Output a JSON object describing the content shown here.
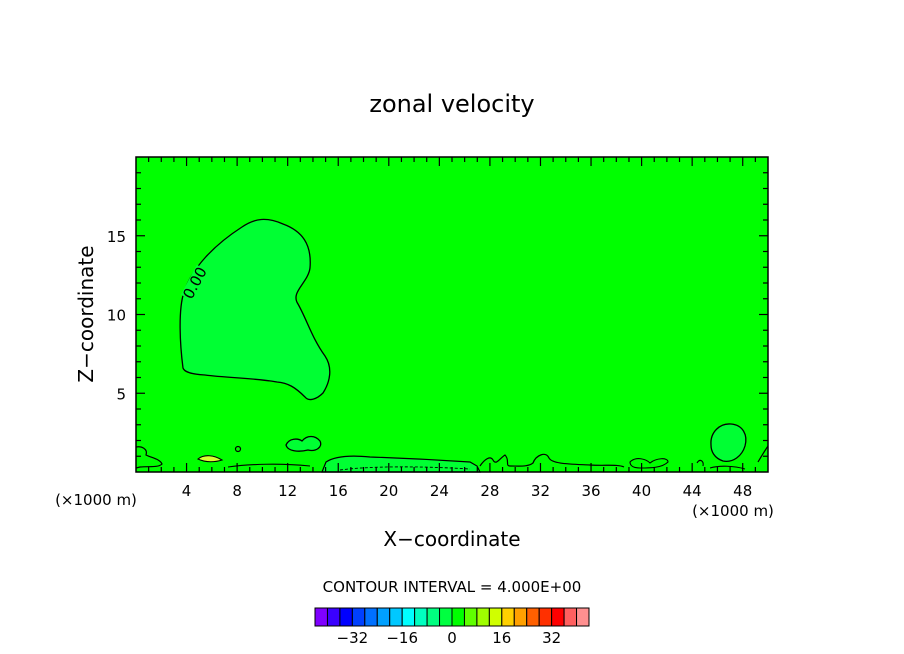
{
  "chart_data": {
    "type": "contour",
    "title": "zonal velocity",
    "xlabel": "X−coordinate",
    "ylabel": "Z−coordinate",
    "x_unit_label": "(×1000 m)",
    "xlim": [
      0,
      50
    ],
    "ylim": [
      0,
      20
    ],
    "x_ticks": [
      4,
      8,
      12,
      16,
      20,
      24,
      28,
      32,
      36,
      40,
      44,
      48
    ],
    "y_ticks": [
      5,
      10,
      15
    ],
    "x_minor_step": 1,
    "y_minor_step": 1,
    "contour_interval_text": "CONTOUR INTERVAL = 4.000E+00",
    "contour_label": "0.00",
    "background_color": "#00ff00",
    "anomaly_color": "#00ff33",
    "colorbar": {
      "colors": [
        "#7f00ff",
        "#3a00ff",
        "#0000ff",
        "#0040ff",
        "#0070ff",
        "#00a0ff",
        "#00c8ff",
        "#00ffff",
        "#00ffc0",
        "#00ff80",
        "#00ff40",
        "#00ff00",
        "#60ff00",
        "#a0ff00",
        "#d0ff00",
        "#ffd000",
        "#ffa000",
        "#ff6000",
        "#ff3000",
        "#ff0000",
        "#ff6060",
        "#ff9090"
      ],
      "tick_values": [
        -32,
        -16,
        0,
        16,
        32
      ],
      "tick_labels": [
        "−32",
        "−16",
        "0",
        "16",
        "32"
      ],
      "min": -44,
      "max": 44
    }
  }
}
